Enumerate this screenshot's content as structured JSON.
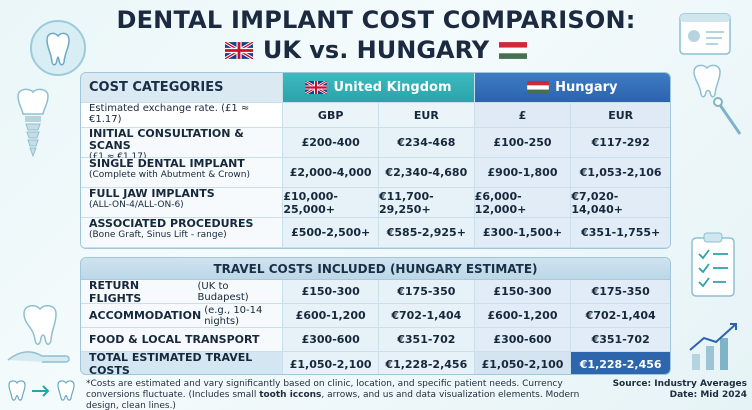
{
  "title": {
    "line1": "DENTAL IMPLANT COST COMPARISON:",
    "line2": "UK vs. HUNGARY"
  },
  "colors": {
    "uk_header": "#2aa3aa",
    "hungary_header": "#2c63ad",
    "accent_total": "#2d66ad"
  },
  "cost_table": {
    "header": {
      "categories": "COST CATEGORIES",
      "uk": "United Kingdom",
      "hungary": "Hungary"
    },
    "subheader": {
      "label": "Estimated exchange rate. (£1 ≈ €1.17)",
      "uk_col1": "GBP",
      "uk_col2": "EUR",
      "hu_col1": "£",
      "hu_col2": "EUR"
    },
    "rows": [
      {
        "label": "INITIAL CONSULTATION & SCANS",
        "sublabel": "(£1 ≈ €1.17)",
        "uk_gbp": "£200-400",
        "uk_eur": "€234-468",
        "hu_gbp": "£100-250",
        "hu_eur": "€117-292"
      },
      {
        "label": "SINGLE DENTAL IMPLANT",
        "sublabel": "(Complete with Abutment & Crown)",
        "uk_gbp": "£2,000-4,000",
        "uk_eur": "€2,340-4,680",
        "hu_gbp": "£900-1,800",
        "hu_eur": "€1,053-2,106"
      },
      {
        "label": "FULL JAW IMPLANTS",
        "sublabel": "(ALL-ON-4/ALL-ON-6)",
        "uk_gbp": "£10,000-25,000+",
        "uk_eur": "€11,700-29,250+",
        "hu_gbp": "£6,000-12,000+",
        "hu_eur": "€7,020-14,040+"
      },
      {
        "label": "ASSOCIATED PROCEDURES",
        "sublabel": "(Bone Graft, Sinus Lift - range)",
        "uk_gbp": "£500-2,500+",
        "uk_eur": "€585-2,925+",
        "hu_gbp": "£300-1,500+",
        "hu_eur": "€351-1,755+"
      }
    ]
  },
  "travel_table": {
    "header": "TRAVEL COSTS INCLUDED (HUNGARY ESTIMATE)",
    "rows": [
      {
        "label": "RETURN FLIGHTS",
        "note": "(UK to Budapest)",
        "uk_gbp": "£150-300",
        "uk_eur": "€175-350",
        "hu_gbp": "£150-300",
        "hu_eur": "€175-350"
      },
      {
        "label": "ACCOMMODATION",
        "note": "(e.g., 10-14 nights)",
        "uk_gbp": "£600-1,200",
        "uk_eur": "€702-1,404",
        "hu_gbp": "£600-1,200",
        "hu_eur": "€702-1,404"
      },
      {
        "label": "FOOD & LOCAL TRANSPORT",
        "note": "",
        "uk_gbp": "£300-600",
        "uk_eur": "€351-702",
        "hu_gbp": "£300-600",
        "hu_eur": "€351-702"
      }
    ],
    "total": {
      "label": "TOTAL ESTIMATED TRAVEL COSTS",
      "uk_gbp": "£1,050-2,100",
      "uk_eur": "€1,228-2,456",
      "hu_gbp": "£1,050-2,100",
      "hu_eur": "€1,228-2,456"
    }
  },
  "footnote": {
    "part1": "*Costs are estimated and vary significantly based on clinic, location, and specific patient needs. Currency conversions fluctuate. (Includes small ",
    "bold": "tooth iccons",
    "part2": ", arrows, and us and data visualization elements. Modern design, clean lines.)"
  },
  "source": {
    "line1": "Source: Industry Averages",
    "line2": "Date: Mid 2024"
  }
}
